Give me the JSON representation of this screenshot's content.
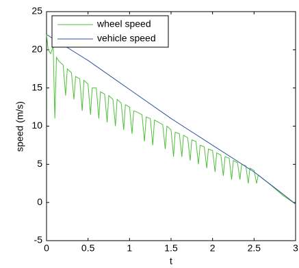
{
  "chart_data": {
    "type": "line",
    "xlabel": "t",
    "ylabel": "speed (m/s)",
    "xlim": [
      0,
      3
    ],
    "ylim": [
      -5,
      25
    ],
    "xticks": [
      0,
      0.5,
      1,
      1.5,
      2,
      2.5,
      3
    ],
    "yticks": [
      -5,
      0,
      5,
      10,
      15,
      20,
      25
    ],
    "legend": "upper left",
    "grid": false,
    "series": [
      {
        "name": "wheel speed",
        "color": "#4dbf3a",
        "x": [
          0,
          0.02,
          0.05,
          0.08,
          0.1,
          0.12,
          0.15,
          0.2,
          0.23,
          0.25,
          0.3,
          0.33,
          0.35,
          0.4,
          0.43,
          0.45,
          0.5,
          0.53,
          0.55,
          0.6,
          0.63,
          0.65,
          0.7,
          0.73,
          0.75,
          0.8,
          0.83,
          0.85,
          0.9,
          0.93,
          0.95,
          1.0,
          1.03,
          1.05,
          1.1,
          1.15,
          1.18,
          1.2,
          1.25,
          1.28,
          1.3,
          1.35,
          1.4,
          1.43,
          1.45,
          1.5,
          1.53,
          1.55,
          1.6,
          1.63,
          1.65,
          1.7,
          1.73,
          1.75,
          1.8,
          1.83,
          1.85,
          1.9,
          1.93,
          1.95,
          2.0,
          2.03,
          2.05,
          2.1,
          2.13,
          2.15,
          2.2,
          2.23,
          2.25,
          2.3,
          2.33,
          2.35,
          2.4,
          2.43,
          2.45,
          2.5,
          2.53,
          2.55,
          2.7,
          2.85,
          3.0
        ],
        "values": [
          22,
          20,
          19.5,
          20.5,
          11,
          19,
          18.5,
          18,
          14,
          17.5,
          17,
          13.5,
          16.5,
          16.2,
          12,
          16,
          15.5,
          11.5,
          15,
          15,
          11,
          14.5,
          14.2,
          10.5,
          14,
          13.5,
          10,
          13.5,
          13,
          9.5,
          12.8,
          12.5,
          9,
          12,
          11.8,
          11.5,
          8,
          11.2,
          11,
          7.5,
          10.8,
          10.5,
          10.2,
          7,
          10,
          9.5,
          6,
          9.2,
          9,
          6,
          8.8,
          8.5,
          5.5,
          8.2,
          8,
          5,
          7.5,
          7.3,
          4.5,
          7,
          6.8,
          4,
          6.5,
          6.2,
          3.5,
          6,
          5.8,
          3,
          5.5,
          5.2,
          3,
          5,
          4.8,
          2.5,
          4.5,
          4.2,
          2.5,
          3.6,
          2.3,
          0.9,
          -0.2
        ]
      },
      {
        "name": "vehicle speed",
        "color": "#2b4f9e",
        "x": [
          0,
          0.5,
          1,
          1.5,
          2,
          2.5,
          2.8,
          3
        ],
        "values": [
          22,
          18.6,
          14.8,
          11,
          7.5,
          4,
          1.5,
          -0.2
        ]
      }
    ]
  }
}
